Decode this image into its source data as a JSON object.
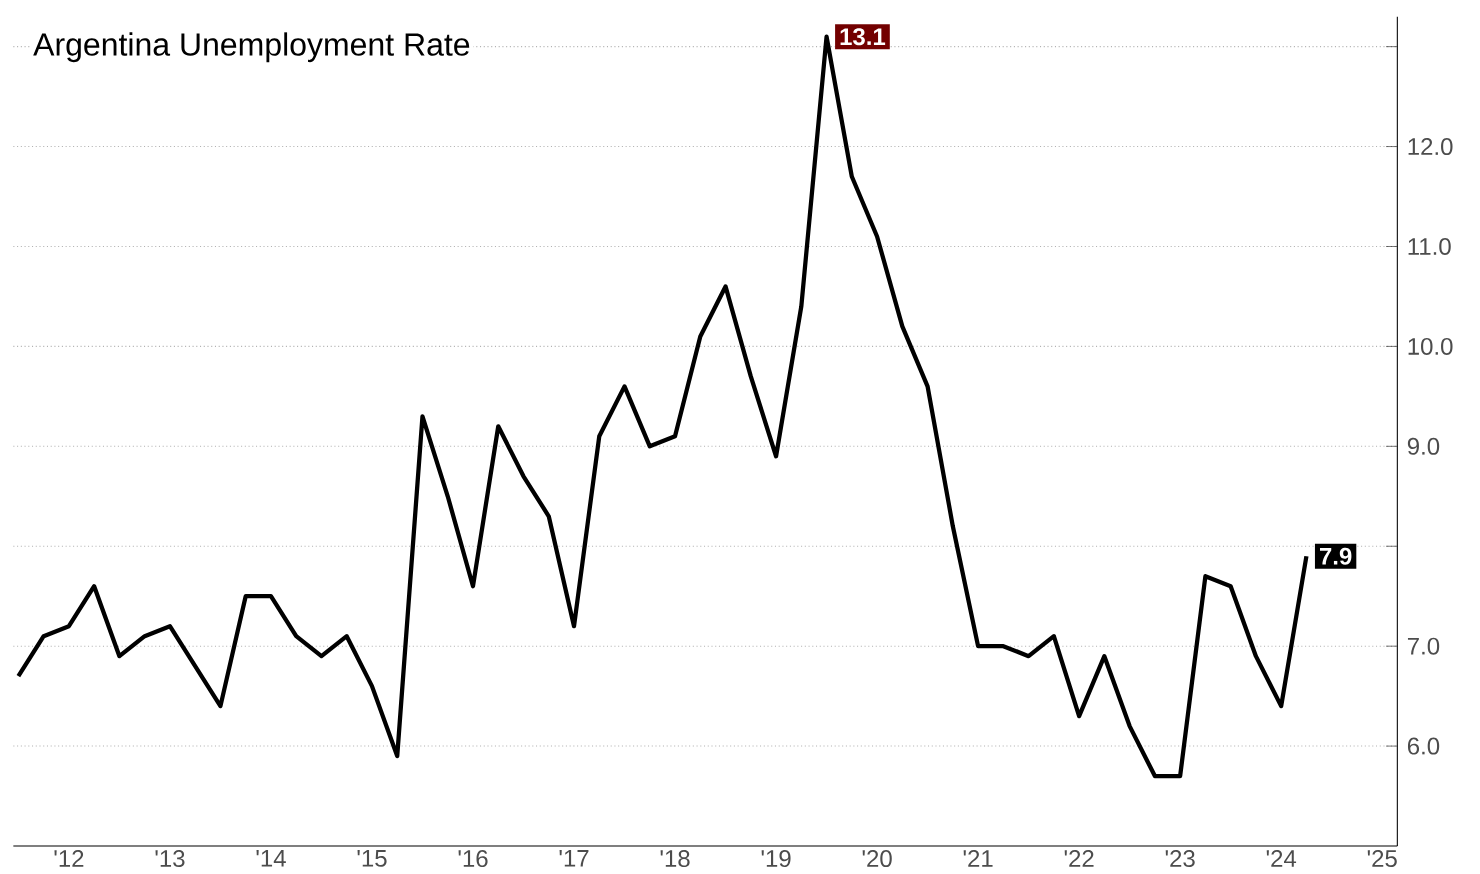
{
  "chart_data": {
    "type": "line",
    "title": "Argentina Unemployment Rate",
    "x": [
      2011.5,
      2011.75,
      2012.0,
      2012.25,
      2012.5,
      2012.75,
      2013.0,
      2013.25,
      2013.5,
      2013.75,
      2014.0,
      2014.25,
      2014.5,
      2014.75,
      2015.0,
      2015.25,
      2015.5,
      2015.75,
      2016.0,
      2016.25,
      2016.5,
      2016.75,
      2017.0,
      2017.25,
      2017.5,
      2017.75,
      2018.0,
      2018.25,
      2018.5,
      2018.75,
      2019.0,
      2019.25,
      2019.5,
      2019.75,
      2020.0,
      2020.25,
      2020.5,
      2020.75,
      2021.0,
      2021.25,
      2021.5,
      2021.75,
      2022.0,
      2022.25,
      2022.5,
      2022.75,
      2023.0,
      2023.25,
      2023.5,
      2023.75,
      2024.0,
      2024.25
    ],
    "series": [
      {
        "color": "#000000",
        "values": [
          6.7,
          7.1,
          7.2,
          7.6,
          6.9,
          7.1,
          7.2,
          6.8,
          6.4,
          7.5,
          7.5,
          7.1,
          6.9,
          7.1,
          6.6,
          5.9,
          9.3,
          8.5,
          7.6,
          9.2,
          8.7,
          8.3,
          7.2,
          9.1,
          9.6,
          9.0,
          9.1,
          10.1,
          10.6,
          9.7,
          8.9,
          10.4,
          13.1,
          11.7,
          11.1,
          10.2,
          9.6,
          8.2,
          7.0,
          7.0,
          6.9,
          7.1,
          6.3,
          6.9,
          6.2,
          5.7,
          5.7,
          7.7,
          7.6,
          6.9,
          6.4,
          7.9
        ],
        "value_labels": [
          null,
          null,
          null,
          null,
          null,
          null,
          null,
          null,
          null,
          null,
          null,
          null,
          null,
          null,
          null,
          null,
          null,
          null,
          null,
          null,
          null,
          null,
          null,
          null,
          null,
          null,
          null,
          null,
          null,
          null,
          null,
          null,
          "13.1",
          null,
          null,
          null,
          null,
          null,
          null,
          null,
          null,
          null,
          null,
          null,
          null,
          null,
          null,
          null,
          null,
          null,
          null,
          "7.9"
        ]
      }
    ],
    "xlim": [
      2011.45,
      2025.15
    ],
    "ylim": [
      5.0,
      13.3
    ],
    "xticks": [
      {
        "value": 2012,
        "label": "'12"
      },
      {
        "value": 2013,
        "label": "'13"
      },
      {
        "value": 2014,
        "label": "'14"
      },
      {
        "value": 2015,
        "label": "'15"
      },
      {
        "value": 2016,
        "label": "'16"
      },
      {
        "value": 2017,
        "label": "'17"
      },
      {
        "value": 2018,
        "label": "'18"
      },
      {
        "value": 2019,
        "label": "'19"
      },
      {
        "value": 2020,
        "label": "'20"
      },
      {
        "value": 2021,
        "label": "'21"
      },
      {
        "value": 2022,
        "label": "'22"
      },
      {
        "value": 2023,
        "label": "'23"
      },
      {
        "value": 2024,
        "label": "'24"
      },
      {
        "value": 2025,
        "label": "'25"
      }
    ],
    "yticks": [
      {
        "value": 6,
        "label": "6.0"
      },
      {
        "value": 7,
        "label": "7.0"
      },
      {
        "value": 8,
        "label": null
      },
      {
        "value": 9,
        "label": "9.0"
      },
      {
        "value": 10,
        "label": "10.0"
      },
      {
        "value": 11,
        "label": "11.0"
      },
      {
        "value": 12,
        "label": "12.0"
      },
      {
        "value": 13,
        "label": null
      }
    ],
    "grid": "y",
    "marker": "none",
    "line_style": "solid"
  }
}
